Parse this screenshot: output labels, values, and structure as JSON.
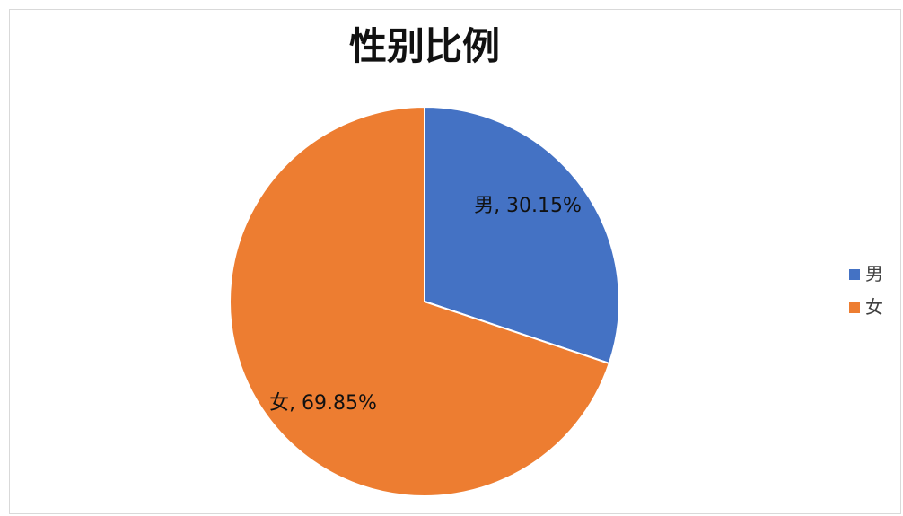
{
  "chart_data": {
    "type": "pie",
    "title": "性别比例",
    "categories": [
      "男",
      "女"
    ],
    "values": [
      30.15,
      69.85
    ],
    "colors": [
      "#4472C4",
      "#ED7D31"
    ],
    "data_labels": [
      "男, 30.15%",
      "女, 69.85%"
    ],
    "legend": {
      "position": "right",
      "entries": [
        "男",
        "女"
      ]
    },
    "start_angle_deg": 0,
    "direction": "clockwise",
    "slice_border_color": "#ffffff"
  }
}
